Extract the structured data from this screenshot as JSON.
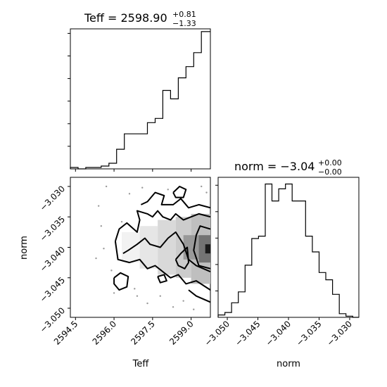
{
  "chart_data": [
    {
      "type": "histogram",
      "panel": "top-left",
      "param": "Teff",
      "title_main": "Teff = 2598.90",
      "title_sup": "+0.81",
      "title_sub": "−1.33",
      "xlim": [
        2594.3,
        2599.75
      ],
      "bin_edges": [
        2594.3,
        2594.6,
        2594.9,
        2595.2,
        2595.5,
        2595.8,
        2596.1,
        2596.4,
        2596.7,
        2597.0,
        2597.3,
        2597.6,
        2597.9,
        2598.2,
        2598.5,
        2598.8,
        2599.1,
        2599.4,
        2599.75
      ],
      "counts": [
        1,
        0,
        1,
        1,
        2,
        4,
        14,
        25,
        25,
        25,
        33,
        36,
        56,
        50,
        65,
        73,
        83,
        98
      ]
    },
    {
      "type": "contour",
      "panel": "bottom-left",
      "x_param": "Teff",
      "y_param": "norm",
      "xlabel": "Teff",
      "ylabel": "norm",
      "xlim": [
        2594.3,
        2599.75
      ],
      "ylim": [
        -3.0515,
        -3.0285
      ],
      "xticks": [
        "2594.5",
        "2596.0",
        "2597.5",
        "2599.0"
      ],
      "xtick_values": [
        2594.5,
        2596.0,
        2597.5,
        2599.0
      ],
      "yticks": [
        "−3.030",
        "−3.035",
        "−3.040",
        "−3.045",
        "−3.050"
      ],
      "ytick_values": [
        -3.03,
        -3.035,
        -3.04,
        -3.045,
        -3.05
      ],
      "density_cells": [
        {
          "x0": 2596.3,
          "x1": 2597.0,
          "y0": -3.0425,
          "y1": -3.0375,
          "shade": 0.95
        },
        {
          "x0": 2597.0,
          "x1": 2597.7,
          "y0": -3.0435,
          "y1": -3.0365,
          "shade": 0.9
        },
        {
          "x0": 2597.7,
          "x1": 2598.4,
          "y0": -3.0445,
          "y1": -3.0355,
          "shade": 0.85
        },
        {
          "x0": 2598.4,
          "x1": 2599.0,
          "y0": -3.045,
          "y1": -3.035,
          "shade": 0.8
        },
        {
          "x0": 2599.0,
          "x1": 2599.75,
          "y0": -3.046,
          "y1": -3.0345,
          "shade": 0.75
        },
        {
          "x0": 2598.7,
          "x1": 2599.3,
          "y0": -3.042,
          "y1": -3.038,
          "shade": 0.6
        },
        {
          "x0": 2599.3,
          "x1": 2599.75,
          "y0": -3.0425,
          "y1": -3.038,
          "shade": 0.45
        },
        {
          "x0": 2599.55,
          "x1": 2599.75,
          "y0": -3.041,
          "y1": -3.0395,
          "shade": 0.1
        }
      ],
      "contours": [
        [
          [
            2596.05,
            -3.039
          ],
          [
            2596.2,
            -3.037
          ],
          [
            2596.5,
            -3.036
          ],
          [
            2596.9,
            -3.0375
          ],
          [
            2597.0,
            -3.0355
          ],
          [
            2596.9,
            -3.034
          ],
          [
            2597.3,
            -3.0345
          ],
          [
            2597.5,
            -3.035
          ],
          [
            2597.7,
            -3.034
          ],
          [
            2597.9,
            -3.035
          ],
          [
            2598.2,
            -3.0355
          ],
          [
            2598.4,
            -3.0345
          ],
          [
            2598.7,
            -3.0355
          ],
          [
            2599.0,
            -3.035
          ],
          [
            2599.3,
            -3.0345
          ],
          [
            2599.75,
            -3.035
          ]
        ],
        [
          [
            2596.05,
            -3.039
          ],
          [
            2596.15,
            -3.042
          ],
          [
            2596.6,
            -3.0425
          ],
          [
            2597.0,
            -3.042
          ],
          [
            2597.3,
            -3.0435
          ],
          [
            2597.6,
            -3.043
          ],
          [
            2597.9,
            -3.044
          ],
          [
            2598.2,
            -3.045
          ],
          [
            2598.5,
            -3.0445
          ],
          [
            2598.8,
            -3.046
          ],
          [
            2599.2,
            -3.0455
          ],
          [
            2599.75,
            -3.047
          ]
        ],
        [
          [
            2597.05,
            -3.033
          ],
          [
            2597.3,
            -3.0325
          ],
          [
            2597.6,
            -3.031
          ],
          [
            2597.95,
            -3.0315
          ],
          [
            2597.85,
            -3.033
          ],
          [
            2598.3,
            -3.033
          ],
          [
            2598.6,
            -3.032
          ],
          [
            2598.9,
            -3.0335
          ],
          [
            2599.3,
            -3.033
          ],
          [
            2599.75,
            -3.0335
          ]
        ],
        [
          [
            2596.35,
            -3.041
          ],
          [
            2596.55,
            -3.0405
          ],
          [
            2596.9,
            -3.0395
          ],
          [
            2597.2,
            -3.0385
          ],
          [
            2597.4,
            -3.0395
          ],
          [
            2597.8,
            -3.04
          ],
          [
            2598.1,
            -3.0385
          ],
          [
            2598.4,
            -3.0375
          ],
          [
            2598.7,
            -3.0395
          ],
          [
            2598.9,
            -3.042
          ],
          [
            2599.2,
            -3.043
          ],
          [
            2599.75,
            -3.044
          ]
        ],
        [
          [
            2599.75,
            -3.037
          ],
          [
            2599.35,
            -3.0365
          ],
          [
            2599.2,
            -3.038
          ],
          [
            2599.1,
            -3.0405
          ],
          [
            2599.3,
            -3.043
          ],
          [
            2599.75,
            -3.0435
          ]
        ],
        [
          [
            2598.4,
            -3.042
          ],
          [
            2598.6,
            -3.041
          ],
          [
            2598.85,
            -3.04
          ],
          [
            2598.9,
            -3.0425
          ],
          [
            2598.75,
            -3.0435
          ],
          [
            2598.5,
            -3.043
          ],
          [
            2598.4,
            -3.042
          ]
        ],
        [
          [
            2598.3,
            -3.031
          ],
          [
            2598.55,
            -3.03
          ],
          [
            2598.8,
            -3.0305
          ],
          [
            2598.7,
            -3.0318
          ],
          [
            2598.4,
            -3.0318
          ],
          [
            2598.3,
            -3.031
          ]
        ],
        [
          [
            2596.0,
            -3.045
          ],
          [
            2596.25,
            -3.0442
          ],
          [
            2596.55,
            -3.0448
          ],
          [
            2596.5,
            -3.0465
          ],
          [
            2596.2,
            -3.047
          ],
          [
            2596.0,
            -3.046
          ],
          [
            2596.0,
            -3.045
          ]
        ],
        [
          [
            2597.7,
            -3.0448
          ],
          [
            2597.95,
            -3.0445
          ],
          [
            2598.05,
            -3.0455
          ],
          [
            2597.8,
            -3.0458
          ],
          [
            2597.7,
            -3.0448
          ]
        ],
        [
          [
            2598.9,
            -3.047
          ],
          [
            2599.2,
            -3.048
          ],
          [
            2599.75,
            -3.049
          ]
        ]
      ],
      "scatter": [
        [
          2595.7,
          -3.03
        ],
        [
          2596.6,
          -3.0312
        ],
        [
          2596.3,
          -3.0358
        ],
        [
          2595.5,
          -3.0365
        ],
        [
          2595.6,
          -3.0402
        ],
        [
          2595.3,
          -3.0418
        ],
        [
          2595.9,
          -3.0438
        ],
        [
          2596.0,
          -3.0475
        ],
        [
          2596.9,
          -3.048
        ],
        [
          2597.3,
          -3.0492
        ],
        [
          2597.8,
          -3.048
        ],
        [
          2598.3,
          -3.0498
        ],
        [
          2598.7,
          -3.0488
        ],
        [
          2599.1,
          -3.0502
        ],
        [
          2599.4,
          -3.03
        ],
        [
          2599.6,
          -3.031
        ],
        [
          2597.1,
          -3.0302
        ],
        [
          2598.1,
          -3.0305
        ],
        [
          2595.4,
          -3.0332
        ],
        [
          2596.8,
          -3.0468
        ]
      ]
    },
    {
      "type": "histogram",
      "panel": "bottom-right",
      "param": "norm",
      "xlabel": "norm",
      "title_main": "norm = −3.04",
      "title_sup": "+0.00",
      "title_sub": "−0.00",
      "xlim": [
        -3.0515,
        -3.0285
      ],
      "xticks": [
        "−3.050",
        "−3.045",
        "−3.040",
        "−3.035",
        "−3.030"
      ],
      "xtick_values": [
        -3.05,
        -3.045,
        -3.04,
        -3.035,
        -3.03
      ],
      "bin_edges": [
        -3.0515,
        -3.0504,
        -3.0493,
        -3.0482,
        -3.0471,
        -3.046,
        -3.0449,
        -3.0438,
        -3.0427,
        -3.0416,
        -3.0405,
        -3.0394,
        -3.0383,
        -3.0372,
        -3.0361,
        -3.035,
        -3.0339,
        -3.0328,
        -3.0317,
        -3.0306,
        -3.0295,
        -3.0285
      ],
      "counts": [
        2,
        4,
        12,
        21,
        43,
        65,
        67,
        110,
        96,
        106,
        110,
        96,
        96,
        67,
        54,
        37,
        31,
        19,
        3,
        1,
        0
      ]
    }
  ],
  "colors": {
    "line": "#000000",
    "scatter": "#9a9a9a",
    "density_dark": "#000000",
    "background": "#ffffff"
  }
}
